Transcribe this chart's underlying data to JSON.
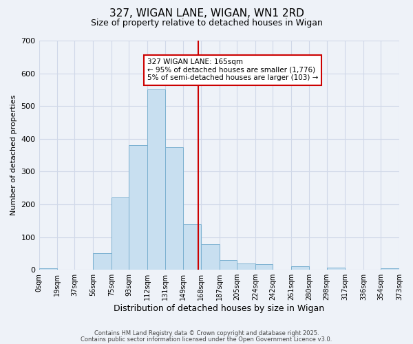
{
  "title": "327, WIGAN LANE, WIGAN, WN1 2RD",
  "subtitle": "Size of property relative to detached houses in Wigan",
  "xlabel": "Distribution of detached houses by size in Wigan",
  "ylabel": "Number of detached properties",
  "bar_color": "#c8dff0",
  "bar_edge_color": "#7ab0d0",
  "background_color": "#eef2f8",
  "vline_x": 165,
  "vline_color": "#cc0000",
  "annotation_title": "327 WIGAN LANE: 165sqm",
  "annotation_line1": "← 95% of detached houses are smaller (1,776)",
  "annotation_line2": "5% of semi-detached houses are larger (103) →",
  "bin_edges": [
    0,
    19,
    37,
    56,
    75,
    93,
    112,
    131,
    149,
    168,
    187,
    205,
    224,
    242,
    261,
    280,
    298,
    317,
    336,
    354,
    373
  ],
  "bin_counts": [
    5,
    0,
    0,
    50,
    220,
    380,
    550,
    375,
    140,
    78,
    30,
    20,
    18,
    0,
    10,
    0,
    7,
    0,
    0,
    5
  ],
  "tick_labels": [
    "0sqm",
    "19sqm",
    "37sqm",
    "56sqm",
    "75sqm",
    "93sqm",
    "112sqm",
    "131sqm",
    "149sqm",
    "168sqm",
    "187sqm",
    "205sqm",
    "224sqm",
    "242sqm",
    "261sqm",
    "280sqm",
    "298sqm",
    "317sqm",
    "336sqm",
    "354sqm",
    "373sqm"
  ],
  "ylim": [
    0,
    700
  ],
  "yticks": [
    0,
    100,
    200,
    300,
    400,
    500,
    600,
    700
  ],
  "footer_line1": "Contains HM Land Registry data © Crown copyright and database right 2025.",
  "footer_line2": "Contains public sector information licensed under the Open Government Licence v3.0."
}
